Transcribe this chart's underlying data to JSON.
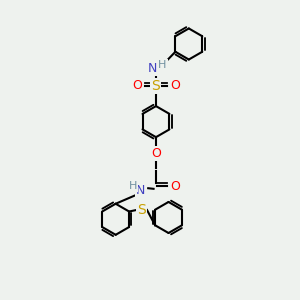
{
  "background_color": "#eef2ee",
  "bond_color": "#000000",
  "bond_width": 1.5,
  "atom_colors": {
    "N": "#4040c0",
    "O": "#ff0000",
    "S_sulfonyl": "#c8a000",
    "S_thio": "#c8a000",
    "H": "#7090a0",
    "C": "#000000"
  },
  "font_size_atom": 9,
  "font_size_H": 8,
  "figsize": [
    3.0,
    3.0
  ],
  "dpi": 100
}
